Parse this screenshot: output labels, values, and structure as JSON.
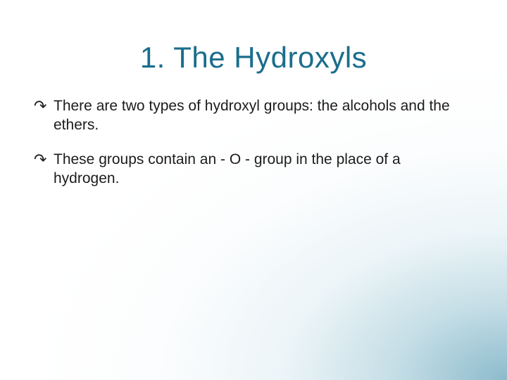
{
  "slide": {
    "title": "1. The Hydroxyls",
    "title_color": "#1a6d8c",
    "title_fontsize": 42,
    "body_color": "#1c1c1c",
    "body_fontsize": 21,
    "bullet_marker": "↷",
    "bullets": [
      "There are two types of hydroxyl groups: the alcohols and the ethers.",
      "These groups contain an - O - group in the place of a hydrogen."
    ],
    "background": {
      "base_color": "#ffffff",
      "gradient_corner": "bottom-right",
      "gradient_color_inner": "#78afc3",
      "gradient_color_outer": "#ffffff"
    }
  }
}
